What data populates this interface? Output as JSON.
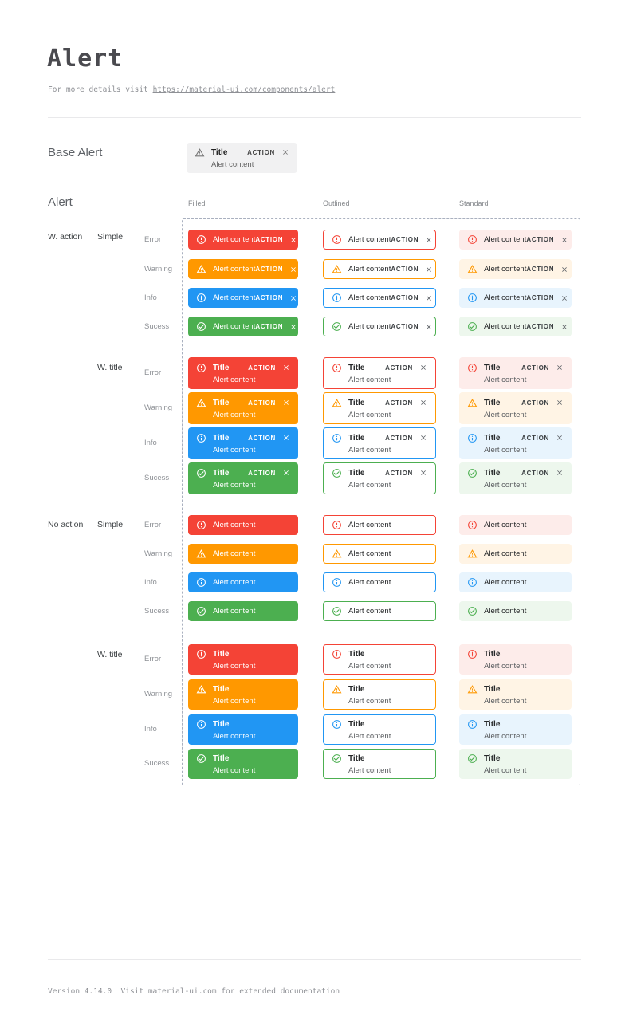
{
  "page": {
    "title": "Alert",
    "subtitle_prefix": "For more details visit ",
    "subtitle_link": "https://material-ui.com/components/alert",
    "footer": "Version 4.14.0  Visit material-ui.com for extended documentation"
  },
  "base_alert": {
    "label": "Base Alert",
    "title": "Title",
    "content": "Alert content",
    "action_label": "ACTION",
    "icon": "warning-icon",
    "background": "#f1f1f2",
    "icon_color": "#757575"
  },
  "alert_grid": {
    "section_label": "Alert",
    "column_headers": [
      "Filled",
      "Outlined",
      "Standard"
    ],
    "row_groups": [
      {
        "label": "W. action",
        "subrows": [
          "Simple",
          "W. title"
        ]
      },
      {
        "label": "No action",
        "subrows": [
          "Simple",
          "W. title"
        ]
      }
    ],
    "alert_title": "Title",
    "alert_content": "Alert content",
    "action_label": "ACTION",
    "severities": [
      {
        "key": "error",
        "label": "Error",
        "icon": "error-icon",
        "color": "#f44336",
        "standard_bg": "#fdecea"
      },
      {
        "key": "warning",
        "label": "Warning",
        "icon": "warning-icon",
        "color": "#ff9800",
        "standard_bg": "#fff4e5"
      },
      {
        "key": "info",
        "label": "Info",
        "icon": "info-icon",
        "color": "#2196f3",
        "standard_bg": "#e8f4fd"
      },
      {
        "key": "success",
        "label": "Sucess",
        "icon": "success-icon",
        "color": "#4caf50",
        "standard_bg": "#edf7ed"
      }
    ]
  }
}
